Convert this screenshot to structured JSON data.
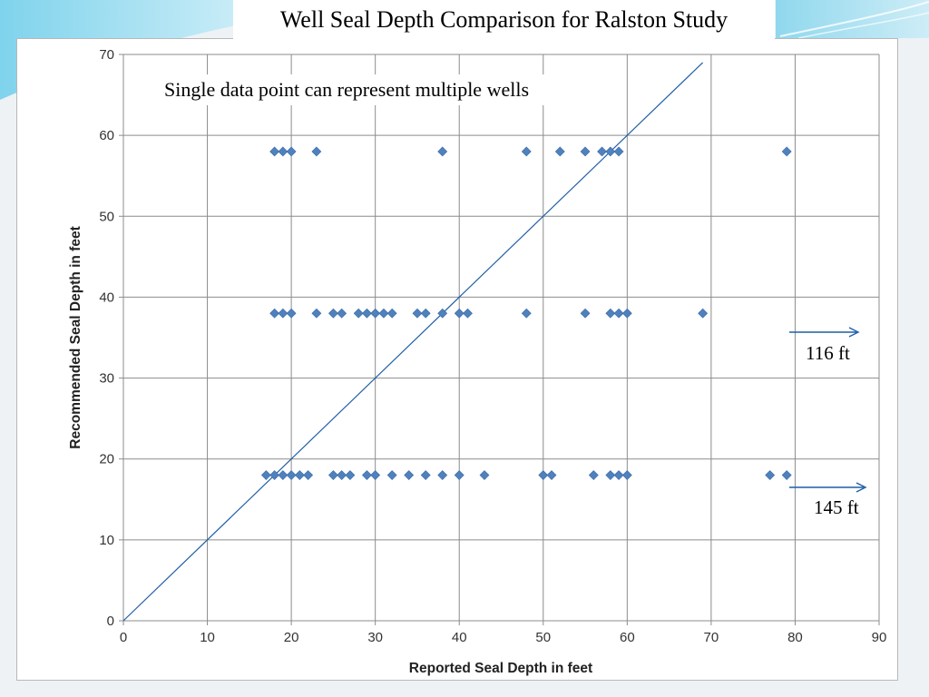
{
  "slide": {
    "title": "Well Seal Depth Comparison for Ralston Study",
    "accent_color": "#5bc0de"
  },
  "chart_data": {
    "type": "scatter",
    "title": "",
    "xlabel": "Reported Seal Depth in feet",
    "ylabel": "Recommended Seal Depth in feet",
    "xlim": [
      0,
      90
    ],
    "ylim": [
      0,
      70
    ],
    "x_ticks": [
      0,
      10,
      20,
      30,
      40,
      50,
      60,
      70,
      80,
      90
    ],
    "y_ticks": [
      0,
      10,
      20,
      30,
      40,
      50,
      60,
      70
    ],
    "grid": true,
    "legend": "none",
    "marker": "diamond",
    "point_color": "#4f81bd",
    "line_color": "#1f5fa6",
    "series": [
      {
        "points": [
          [
            18,
            58
          ],
          [
            19,
            58
          ],
          [
            20,
            58
          ],
          [
            23,
            58
          ],
          [
            38,
            58
          ],
          [
            48,
            58
          ],
          [
            52,
            58
          ],
          [
            55,
            58
          ],
          [
            57,
            58
          ],
          [
            58,
            58
          ],
          [
            59,
            58
          ],
          [
            79,
            58
          ],
          [
            18,
            38
          ],
          [
            19,
            38
          ],
          [
            20,
            38
          ],
          [
            23,
            38
          ],
          [
            25,
            38
          ],
          [
            26,
            38
          ],
          [
            28,
            38
          ],
          [
            29,
            38
          ],
          [
            30,
            38
          ],
          [
            31,
            38
          ],
          [
            32,
            38
          ],
          [
            35,
            38
          ],
          [
            36,
            38
          ],
          [
            38,
            38
          ],
          [
            40,
            38
          ],
          [
            41,
            38
          ],
          [
            48,
            38
          ],
          [
            55,
            38
          ],
          [
            58,
            38
          ],
          [
            59,
            38
          ],
          [
            60,
            38
          ],
          [
            69,
            38
          ],
          [
            17,
            18
          ],
          [
            18,
            18
          ],
          [
            19,
            18
          ],
          [
            20,
            18
          ],
          [
            21,
            18
          ],
          [
            22,
            18
          ],
          [
            25,
            18
          ],
          [
            26,
            18
          ],
          [
            27,
            18
          ],
          [
            29,
            18
          ],
          [
            30,
            18
          ],
          [
            32,
            18
          ],
          [
            34,
            18
          ],
          [
            36,
            18
          ],
          [
            38,
            18
          ],
          [
            40,
            18
          ],
          [
            43,
            18
          ],
          [
            50,
            18
          ],
          [
            51,
            18
          ],
          [
            56,
            18
          ],
          [
            58,
            18
          ],
          [
            59,
            18
          ],
          [
            60,
            18
          ],
          [
            77,
            18
          ],
          [
            79,
            18
          ]
        ]
      }
    ],
    "reference_line": {
      "from": [
        0,
        0
      ],
      "to": [
        69,
        69
      ]
    },
    "annotations": [
      {
        "text": "Single data point can represent multiple wells"
      },
      {
        "text": "116 ft",
        "y": 38
      },
      {
        "text": "145 ft",
        "y": 18
      }
    ]
  }
}
